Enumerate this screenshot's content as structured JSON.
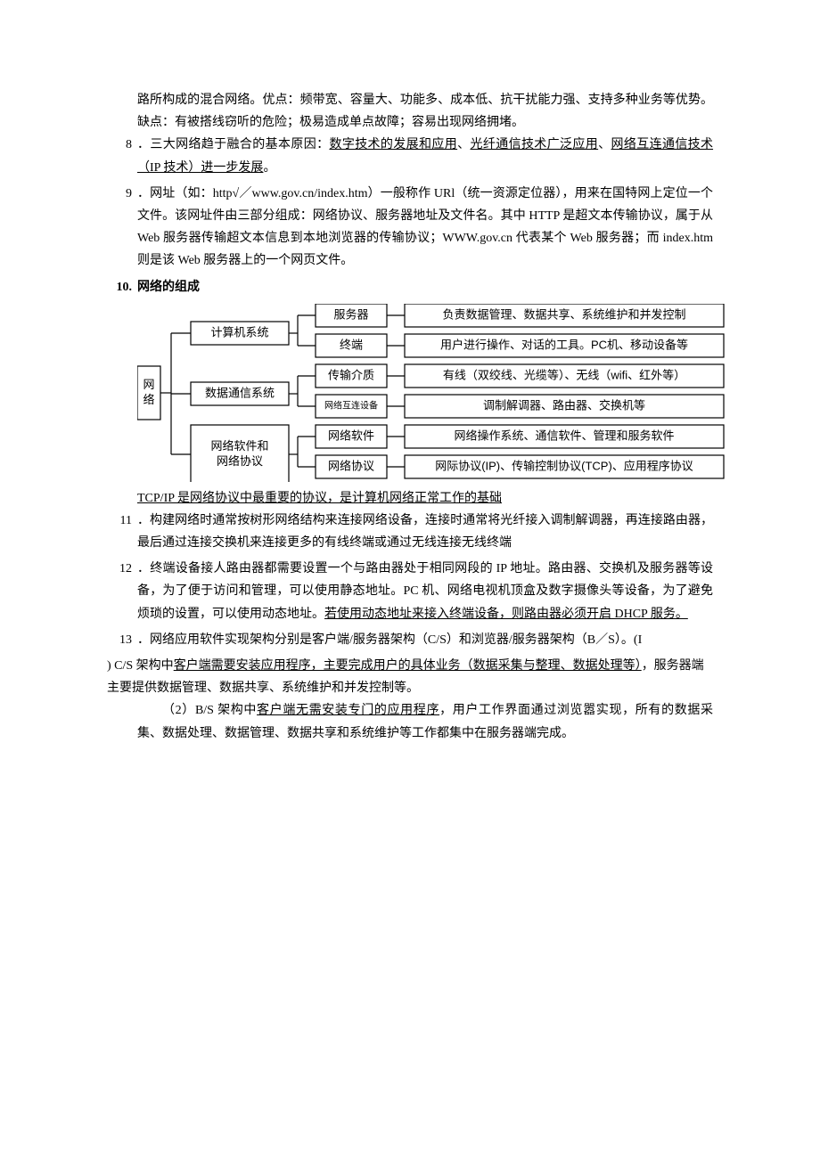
{
  "p7_cont": "路所构成的混合网络。优点：频带宽、容量大、功能多、成本低、抗干扰能力强、支持多种业务等优势。缺点：有被搭线窃听的危险；极易造成单点故障；容易出现网络拥堵。",
  "p8_num": "8",
  "p8_a": "．三大网络趋于融合的基本原因：",
  "p8_u1": "数字技术的发展和应用",
  "p8_sep1": "、",
  "p8_u2": "光纤通信技术广泛应用",
  "p8_sep2": "、",
  "p8_u3": "网络互连通信技术（IP 技术）进一步发展",
  "p8_end": "。",
  "p9_num": "9",
  "p9_txt": "．网址（如：http√／www.gov.cn/index.htm）一般称作 URl（统一资源定位器），用来在国特网上定位一个文件。该网址件由三部分组成：网络协议、服务器地址及文件名。其中 HTTP 是超文本传输协议，属于从 Web 服务器传输超文本信息到本地浏览器的传输协议；WWW.gov.cn 代表某个 Web 服务器；而 index.htm 则是该 Web 服务器上的一个网页文件。",
  "p10_num": "10.",
  "p10_title": "网络的组成",
  "diagram": {
    "root": "网\n络",
    "branches": [
      {
        "label": "计算机系统",
        "children": [
          {
            "mid": "服务器",
            "right": "负责数据管理、数据共享、系统维护和并发控制"
          },
          {
            "mid": "终端",
            "right": "用户进行操作、对话的工具。PC机、移动设备等"
          }
        ]
      },
      {
        "label": "数据通信系统",
        "children": [
          {
            "mid": "传输介质",
            "right": "有线（双绞线、光缆等）、无线（wifi、红外等）"
          },
          {
            "mid": "网络互连设备",
            "right": "调制解调器、路由器、交换机等",
            "mid_small": true
          }
        ]
      },
      {
        "label": "网络软件和\n网络协议",
        "children": [
          {
            "mid": "网络软件",
            "right": "网络操作系统、通信软件、管理和服务软件"
          },
          {
            "mid": "网络协议",
            "right": "网际协议(IP)、传输控制协议(TCP)、应用程序协议"
          }
        ]
      }
    ],
    "colors": {
      "border": "#000000",
      "line": "#000000",
      "bg": "#ffffff"
    },
    "box_stroke": 1.2,
    "font_main": 13,
    "font_small": 10
  },
  "p10_note": "TCP/IP 是网络协议中最重要的协议，是计算机网络正常工作的基础",
  "p11_num": "11",
  "p11_txt": "．构建网络时通常按树形网络结构来连接网络设备，连接时通常将光纤接入调制解调器，再连接路由器，最后通过连接交换机来连接更多的有线终端或通过无线连接无线终端",
  "p12_num": "12",
  "p12_a": "．终端设备接人路由器都需要设置一个与路由器处于相同网段的 IP 地址。路由器、交换机及服务器等设备，为了便于访问和管理，可以使用静态地址。PC 机、网络电视机顶盒及数字摄像头等设备，为了避免烦琐的设置，可以使用动态地址。",
  "p12_u": "若使用动态地址来接入终端设备，则路由器必须开启 DHCP 服务。",
  "p13_num": "13",
  "p13_a": " ．网络应用软件实现架构分别是客户端/服务器架构（C/S）和浏览器/服务器架构（B／S）。(I",
  "p13_b1": ")  C/S 架构中",
  "p13_u1": "客户端需要安装应用程序，主要完成用户的具体业务（数据采集与整理、数据处理等）",
  "p13_b2": "，服务器端主要提供数据管理、数据共享、系统维护和并发控制等。",
  "p13_c1": "（2）B/S 架构中",
  "p13_u2": "客户端无需安装专门的应用程序",
  "p13_c2": "，用户工作界面通过浏览嚣实现，所有的数据采集、数据处理、数据管理、数据共享和系统维护等工作都集中在服务器端完成。"
}
